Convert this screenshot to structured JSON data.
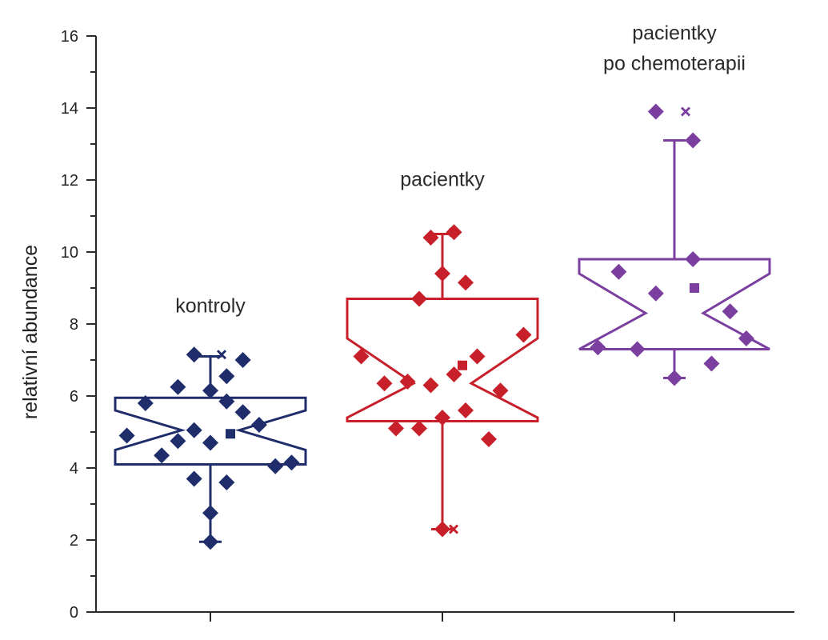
{
  "chart_data": {
    "type": "box",
    "notched": true,
    "ylabel": "relativní abundance",
    "ylim": [
      0,
      16
    ],
    "yticks": [
      0,
      2,
      4,
      6,
      8,
      10,
      12,
      14,
      16
    ],
    "groups": [
      {
        "label_lines": [
          "kontroly"
        ],
        "color": "#1f2d6b",
        "q1": 4.1,
        "median": 5.05,
        "q3": 5.95,
        "notch_low": 4.5,
        "notch_high": 5.6,
        "whisker_low": 1.95,
        "whisker_high": 7.1,
        "mean": 4.95,
        "extreme_max": 7.15,
        "points": [
          [
            -0.36,
            4.9
          ],
          [
            -0.28,
            5.8
          ],
          [
            -0.21,
            4.35
          ],
          [
            -0.14,
            4.75
          ],
          [
            -0.14,
            6.25
          ],
          [
            -0.07,
            3.7
          ],
          [
            -0.07,
            7.15
          ],
          [
            -0.07,
            5.05
          ],
          [
            0.0,
            6.15
          ],
          [
            0.0,
            4.7
          ],
          [
            0.0,
            2.75
          ],
          [
            0.0,
            1.95
          ],
          [
            0.07,
            3.6
          ],
          [
            0.07,
            5.85
          ],
          [
            0.07,
            6.55
          ],
          [
            0.14,
            5.55
          ],
          [
            0.14,
            7.0
          ],
          [
            0.21,
            5.2
          ],
          [
            0.28,
            4.05
          ],
          [
            0.35,
            4.15
          ]
        ]
      },
      {
        "label_lines": [
          "pacientky"
        ],
        "color": "#c8202a",
        "q1": 5.3,
        "median": 6.35,
        "q3": 8.7,
        "notch_low": 5.4,
        "notch_high": 7.6,
        "whisker_low": 2.3,
        "whisker_high": 10.5,
        "mean": 6.85,
        "extreme_max": 10.55,
        "extreme_min": 2.3,
        "points": [
          [
            -0.35,
            7.1
          ],
          [
            -0.25,
            6.35
          ],
          [
            -0.2,
            5.1
          ],
          [
            -0.15,
            6.4
          ],
          [
            -0.1,
            8.7
          ],
          [
            -0.1,
            5.1
          ],
          [
            -0.05,
            10.4
          ],
          [
            -0.05,
            6.3
          ],
          [
            0.0,
            9.4
          ],
          [
            0.0,
            5.4
          ],
          [
            0.0,
            2.3
          ],
          [
            0.05,
            10.55
          ],
          [
            0.05,
            6.6
          ],
          [
            0.1,
            5.6
          ],
          [
            0.1,
            9.15
          ],
          [
            0.15,
            7.1
          ],
          [
            0.2,
            4.8
          ],
          [
            0.25,
            6.15
          ],
          [
            0.35,
            7.7
          ]
        ]
      },
      {
        "label_lines": [
          "pacientky",
          "po chemoterapii"
        ],
        "color": "#7b3fa0",
        "q1": 7.3,
        "median": 8.3,
        "q3": 9.8,
        "notch_low": 7.3,
        "notch_high": 9.4,
        "whisker_low": 6.5,
        "whisker_high": 13.1,
        "mean": 9.0,
        "extreme_max": 13.9,
        "points": [
          [
            -0.33,
            7.35
          ],
          [
            -0.24,
            9.45
          ],
          [
            -0.16,
            7.3
          ],
          [
            -0.08,
            13.9
          ],
          [
            -0.08,
            8.85
          ],
          [
            0.0,
            6.5
          ],
          [
            0.08,
            13.1
          ],
          [
            0.08,
            9.8
          ],
          [
            0.16,
            6.9
          ],
          [
            0.24,
            8.35
          ],
          [
            0.31,
            7.6
          ]
        ]
      }
    ]
  }
}
